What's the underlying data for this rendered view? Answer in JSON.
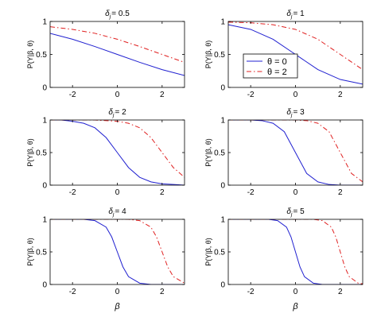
{
  "chart_data": [
    {
      "type": "line",
      "title": "δ_j = 0.5",
      "title_sym": "δ",
      "title_sub": "j",
      "title_val": "= 0.5",
      "ylabel": "P(Y|β, θ)",
      "xlabel": "",
      "xlim": [
        -3,
        3
      ],
      "ylim": [
        0,
        1
      ],
      "xticks": [
        -2,
        0,
        2
      ],
      "yticks": [
        0,
        0.5,
        1
      ],
      "legend": false,
      "series": [
        {
          "name": "θ = 0",
          "color": "#2020d0",
          "dash": "solid",
          "x": [
            -3,
            -2,
            -1,
            0,
            1,
            2,
            3
          ],
          "y": [
            0.82,
            0.73,
            0.62,
            0.5,
            0.38,
            0.27,
            0.18
          ]
        },
        {
          "name": "θ = 2",
          "color": "#e02020",
          "dash": "dashdot",
          "x": [
            -3,
            -2,
            -1,
            0,
            1,
            2,
            3
          ],
          "y": [
            0.92,
            0.88,
            0.82,
            0.73,
            0.62,
            0.5,
            0.38
          ]
        }
      ]
    },
    {
      "type": "line",
      "title": "δ_j = 1",
      "title_sym": "δ",
      "title_sub": "j",
      "title_val": "= 1",
      "ylabel": "P(Y|β, θ)",
      "xlabel": "",
      "xlim": [
        -3,
        3
      ],
      "ylim": [
        0,
        1
      ],
      "xticks": [
        -2,
        0,
        2
      ],
      "yticks": [
        0,
        0.5,
        1
      ],
      "legend": true,
      "legend_position": "center",
      "series": [
        {
          "name": "θ = 0",
          "color": "#2020d0",
          "dash": "solid",
          "x": [
            -3,
            -2,
            -1,
            0,
            1,
            2,
            3
          ],
          "y": [
            0.95,
            0.88,
            0.73,
            0.5,
            0.27,
            0.12,
            0.05
          ]
        },
        {
          "name": "θ = 2",
          "color": "#e02020",
          "dash": "dashdot",
          "x": [
            -3,
            -2,
            -1,
            0,
            1,
            2,
            3
          ],
          "y": [
            0.99,
            0.98,
            0.95,
            0.88,
            0.73,
            0.5,
            0.27
          ]
        }
      ]
    },
    {
      "type": "line",
      "title": "δ_j = 2",
      "title_sym": "δ",
      "title_sub": "j",
      "title_val": "= 2",
      "ylabel": "P(Y|β, θ)",
      "xlabel": "",
      "xlim": [
        -3,
        3
      ],
      "ylim": [
        0,
        1
      ],
      "xticks": [
        -2,
        0,
        2
      ],
      "yticks": [
        0,
        0.5,
        1
      ],
      "legend": false,
      "series": [
        {
          "name": "θ = 0",
          "color": "#2020d0",
          "dash": "solid",
          "x": [
            -3,
            -2.5,
            -2,
            -1.5,
            -1,
            -0.5,
            0,
            0.5,
            1,
            1.5,
            2,
            2.5,
            3
          ],
          "y": [
            1.0,
            1.0,
            0.98,
            0.95,
            0.88,
            0.73,
            0.5,
            0.27,
            0.12,
            0.05,
            0.02,
            0.01,
            0.0
          ]
        },
        {
          "name": "θ = 2",
          "color": "#e02020",
          "dash": "dashdot",
          "x": [
            -3,
            -2,
            -1,
            0,
            0.5,
            1,
            1.5,
            2,
            2.5,
            3
          ],
          "y": [
            1.0,
            1.0,
            1.0,
            0.98,
            0.95,
            0.88,
            0.73,
            0.5,
            0.27,
            0.12
          ]
        }
      ]
    },
    {
      "type": "line",
      "title": "δ_j = 3",
      "title_sym": "δ",
      "title_sub": "j",
      "title_val": "= 3",
      "ylabel": "P(Y|β, θ)",
      "xlabel": "",
      "xlim": [
        -3,
        3
      ],
      "ylim": [
        0,
        1
      ],
      "xticks": [
        -2,
        0,
        2
      ],
      "yticks": [
        0,
        0.5,
        1
      ],
      "legend": false,
      "series": [
        {
          "name": "θ = 0",
          "color": "#2020d0",
          "dash": "solid",
          "x": [
            -3,
            -2,
            -1.5,
            -1,
            -0.5,
            0,
            0.5,
            1,
            1.5,
            2,
            3
          ],
          "y": [
            1.0,
            1.0,
            0.99,
            0.95,
            0.82,
            0.5,
            0.18,
            0.05,
            0.01,
            0.0,
            0.0
          ]
        },
        {
          "name": "θ = 2",
          "color": "#e02020",
          "dash": "dashdot",
          "x": [
            -3,
            0,
            0.5,
            1,
            1.5,
            2,
            2.5,
            3
          ],
          "y": [
            1.0,
            1.0,
            0.99,
            0.95,
            0.82,
            0.5,
            0.18,
            0.05
          ]
        }
      ]
    },
    {
      "type": "line",
      "title": "δ_j = 4",
      "title_sym": "δ",
      "title_sub": "j",
      "title_val": "= 4",
      "ylabel": "P(Y|β, θ)",
      "xlabel": "β",
      "xlim": [
        -3,
        3
      ],
      "ylim": [
        0,
        1
      ],
      "xticks": [
        -2,
        0,
        2
      ],
      "yticks": [
        0,
        0.5,
        1
      ],
      "legend": false,
      "series": [
        {
          "name": "θ = 0",
          "color": "#2020d0",
          "dash": "solid",
          "x": [
            -3,
            -1.5,
            -1,
            -0.5,
            -0.25,
            0,
            0.25,
            0.5,
            1,
            1.5,
            3
          ],
          "y": [
            1.0,
            1.0,
            0.98,
            0.88,
            0.73,
            0.5,
            0.27,
            0.12,
            0.02,
            0.0,
            0.0
          ]
        },
        {
          "name": "θ = 2",
          "color": "#e02020",
          "dash": "dashdot",
          "x": [
            -3,
            0.5,
            1,
            1.5,
            1.75,
            2,
            2.25,
            2.5,
            3
          ],
          "y": [
            1.0,
            1.0,
            0.98,
            0.88,
            0.73,
            0.5,
            0.27,
            0.12,
            0.02
          ]
        }
      ]
    },
    {
      "type": "line",
      "title": "δ_j = 5",
      "title_sym": "δ",
      "title_sub": "j",
      "title_val": "= 5",
      "ylabel": "P(Y|β, θ)",
      "xlabel": "β",
      "xlim": [
        -3,
        3
      ],
      "ylim": [
        0,
        1
      ],
      "xticks": [
        -2,
        0,
        2
      ],
      "yticks": [
        0,
        0.5,
        1
      ],
      "legend": false,
      "series": [
        {
          "name": "θ = 0",
          "color": "#2020d0",
          "dash": "solid",
          "x": [
            -3,
            -1.2,
            -0.8,
            -0.4,
            -0.2,
            0,
            0.2,
            0.4,
            0.8,
            1.2,
            3
          ],
          "y": [
            1.0,
            1.0,
            0.98,
            0.88,
            0.73,
            0.5,
            0.27,
            0.12,
            0.02,
            0.0,
            0.0
          ]
        },
        {
          "name": "θ = 2",
          "color": "#e02020",
          "dash": "dashdot",
          "x": [
            -3,
            0.8,
            1.2,
            1.6,
            1.8,
            2,
            2.2,
            2.4,
            2.8,
            3
          ],
          "y": [
            1.0,
            1.0,
            0.98,
            0.88,
            0.73,
            0.5,
            0.27,
            0.12,
            0.02,
            0.01
          ]
        }
      ]
    }
  ]
}
